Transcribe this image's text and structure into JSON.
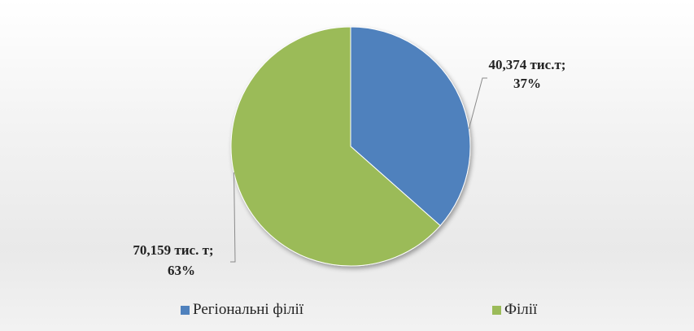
{
  "chart_data": {
    "type": "pie",
    "title": "",
    "slices": [
      {
        "name": "Регіональні філії",
        "value": 40.374,
        "percent": 37,
        "label_line1": "40,374 тис.т;",
        "label_line2": "37%",
        "color": "#4f81bd"
      },
      {
        "name": "Філії",
        "value": 70.159,
        "percent": 63,
        "label_line1": "70,159 тис. т;",
        "label_line2": "63%",
        "color": "#9bbb59"
      }
    ],
    "legend_position": "bottom"
  },
  "legend": {
    "items": [
      {
        "label": "Регіональні філії",
        "color": "#4f81bd"
      },
      {
        "label": "Філії",
        "color": "#9bbb59"
      }
    ]
  }
}
